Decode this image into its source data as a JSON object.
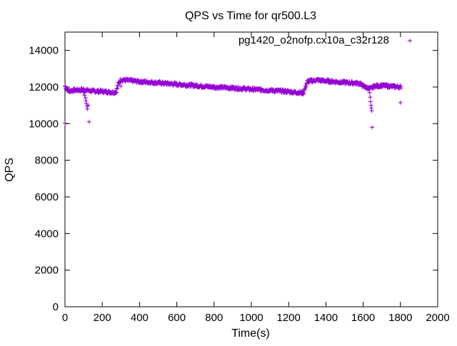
{
  "chart_data": {
    "type": "scatter",
    "title": "QPS vs Time for qr500.L3",
    "xlabel": "Time(s)",
    "ylabel": "QPS",
    "xlim": [
      0,
      2000
    ],
    "ylim": [
      0,
      15000
    ],
    "xticks": [
      0,
      200,
      400,
      600,
      800,
      1000,
      1200,
      1400,
      1600,
      1800,
      2000
    ],
    "yticks": [
      0,
      2000,
      4000,
      6000,
      8000,
      10000,
      12000,
      14000
    ],
    "grid": false,
    "legend_position": "top-right",
    "marker": "plus",
    "color": "#9400d3",
    "series": [
      {
        "name": "pg1420_o2nofp.cx10a_c32r128",
        "trend": [
          [
            0,
            12050
          ],
          [
            10,
            11900
          ],
          [
            20,
            11780
          ],
          [
            50,
            11830
          ],
          [
            100,
            11850
          ],
          [
            150,
            11780
          ],
          [
            200,
            11760
          ],
          [
            250,
            11720
          ],
          [
            275,
            11730
          ],
          [
            285,
            12150
          ],
          [
            300,
            12400
          ],
          [
            400,
            12300
          ],
          [
            500,
            12230
          ],
          [
            600,
            12150
          ],
          [
            700,
            12080
          ],
          [
            800,
            12000
          ],
          [
            900,
            11950
          ],
          [
            1000,
            11880
          ],
          [
            1100,
            11820
          ],
          [
            1200,
            11750
          ],
          [
            1250,
            11700
          ],
          [
            1280,
            11680
          ],
          [
            1300,
            12300
          ],
          [
            1350,
            12380
          ],
          [
            1400,
            12330
          ],
          [
            1500,
            12250
          ],
          [
            1580,
            12200
          ],
          [
            1610,
            12000
          ],
          [
            1640,
            11900
          ],
          [
            1660,
            12050
          ],
          [
            1700,
            12080
          ],
          [
            1800,
            12000
          ]
        ],
        "outliers": [
          [
            0,
            10030
          ],
          [
            100,
            11700
          ],
          [
            105,
            11550
          ],
          [
            110,
            11400
          ],
          [
            112,
            11250
          ],
          [
            115,
            11100
          ],
          [
            118,
            10950
          ],
          [
            120,
            10800
          ],
          [
            125,
            11000
          ],
          [
            130,
            10100
          ],
          [
            300,
            12050
          ],
          [
            1635,
            11700
          ],
          [
            1638,
            11450
          ],
          [
            1640,
            11200
          ],
          [
            1642,
            11000
          ],
          [
            1644,
            10850
          ],
          [
            1646,
            10700
          ],
          [
            1648,
            9800
          ],
          [
            1800,
            11150
          ],
          [
            1803,
            11950
          ]
        ]
      }
    ]
  }
}
